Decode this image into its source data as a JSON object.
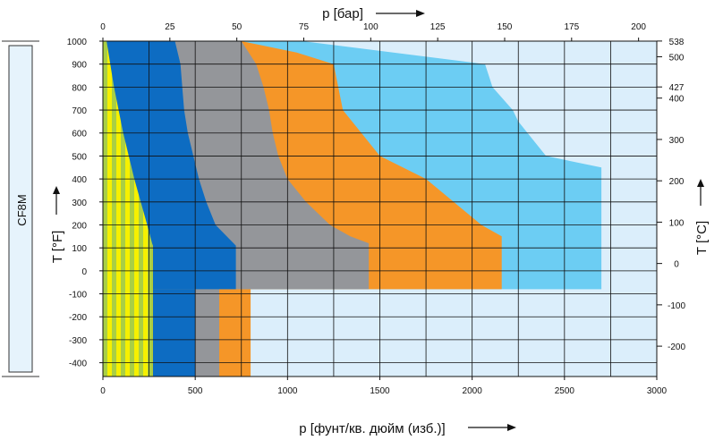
{
  "chart_data": {
    "type": "area",
    "material_label": "CF8M",
    "bottom_axis": {
      "label": "p [фунт/кв. дюйм (изб.)]",
      "unit": "psig",
      "lim": [
        0,
        3000
      ],
      "ticks": [
        0,
        500,
        1000,
        1500,
        2000,
        2500,
        3000
      ]
    },
    "top_axis": {
      "label": "p [бар]",
      "unit": "bar",
      "lim": [
        0,
        206.8
      ],
      "ticks": [
        0,
        25,
        50,
        75,
        100,
        125,
        150,
        175,
        200
      ]
    },
    "left_axis": {
      "label": "T [°F]",
      "unit": "°F",
      "lim": [
        -460,
        1000
      ],
      "ticks": [
        -400,
        -300,
        -200,
        -100,
        0,
        100,
        200,
        300,
        400,
        500,
        600,
        700,
        800,
        900,
        1000
      ]
    },
    "right_axis": {
      "label": "T [°C]",
      "unit": "°C",
      "ticks": [
        -200,
        -100,
        0,
        100,
        200,
        300,
        400,
        427,
        500,
        538
      ]
    },
    "grid": true,
    "colors": {
      "background_region": "#dbeefb",
      "striped_yellow": "#f6f000",
      "striped_green": "#a9cf45",
      "dark_blue": "#0d6cc2",
      "gray": "#94969a",
      "orange": "#f59628",
      "light_blue": "#6ccdf3",
      "grid": "#111111",
      "sidebar_fill": "#e6f3fc"
    },
    "series": [
      {
        "color_key": "light_blue",
        "upper_boundary": [
          [
            0,
            1000
          ],
          [
            1080,
            1000
          ],
          [
            2070,
            900
          ],
          [
            2110,
            800
          ],
          [
            2220,
            700
          ],
          [
            2250,
            650
          ],
          [
            2300,
            600
          ],
          [
            2400,
            500
          ],
          [
            2700,
            450
          ],
          [
            2700,
            -80
          ]
        ],
        "lower_boundary": [
          [
            0,
            -80
          ],
          [
            2700,
            -80
          ]
        ]
      },
      {
        "color_key": "orange",
        "upper_boundary": [
          [
            0,
            1000
          ],
          [
            750,
            1000
          ],
          [
            1050,
            950
          ],
          [
            1250,
            900
          ],
          [
            1300,
            700
          ],
          [
            1400,
            600
          ],
          [
            1500,
            500
          ],
          [
            1750,
            400
          ],
          [
            1900,
            300
          ],
          [
            2050,
            200
          ],
          [
            2160,
            150
          ],
          [
            2160,
            -80
          ]
        ],
        "lower_boundary": [
          [
            0,
            -80
          ],
          [
            2160,
            -80
          ]
        ],
        "cryo_band": {
          "x_range": [
            630,
            800
          ],
          "t_range": [
            -460,
            -80
          ]
        }
      },
      {
        "color_key": "gray",
        "upper_boundary": [
          [
            0,
            1000
          ],
          [
            750,
            1000
          ],
          [
            830,
            900
          ],
          [
            870,
            800
          ],
          [
            900,
            700
          ],
          [
            920,
            600
          ],
          [
            950,
            500
          ],
          [
            1000,
            400
          ],
          [
            1100,
            300
          ],
          [
            1230,
            200
          ],
          [
            1340,
            150
          ],
          [
            1440,
            120
          ],
          [
            1440,
            -80
          ]
        ],
        "lower_boundary": [
          [
            0,
            -80
          ],
          [
            1440,
            -80
          ]
        ],
        "cryo_band": {
          "x_range": [
            500,
            630
          ],
          "t_range": [
            -460,
            -80
          ]
        }
      },
      {
        "color_key": "dark_blue",
        "upper_boundary": [
          [
            0,
            1000
          ],
          [
            390,
            1000
          ],
          [
            420,
            900
          ],
          [
            430,
            800
          ],
          [
            440,
            700
          ],
          [
            460,
            600
          ],
          [
            490,
            500
          ],
          [
            520,
            400
          ],
          [
            560,
            300
          ],
          [
            610,
            200
          ],
          [
            720,
            110
          ],
          [
            720,
            -80
          ]
        ],
        "lower_boundary": [
          [
            0,
            -80
          ],
          [
            720,
            -80
          ]
        ],
        "cryo_band": {
          "x_range": [
            0,
            500
          ],
          "t_range": [
            -460,
            -80
          ]
        }
      },
      {
        "color_key": "striped_yellow",
        "pattern": "vertical-stripes",
        "upper_boundary": [
          [
            0,
            1000
          ],
          [
            20,
            1000
          ],
          [
            60,
            800
          ],
          [
            110,
            600
          ],
          [
            170,
            400
          ],
          [
            240,
            200
          ],
          [
            270,
            110
          ],
          [
            270,
            -460
          ]
        ],
        "lower_boundary": [
          [
            0,
            -460
          ],
          [
            270,
            -460
          ]
        ]
      }
    ]
  }
}
